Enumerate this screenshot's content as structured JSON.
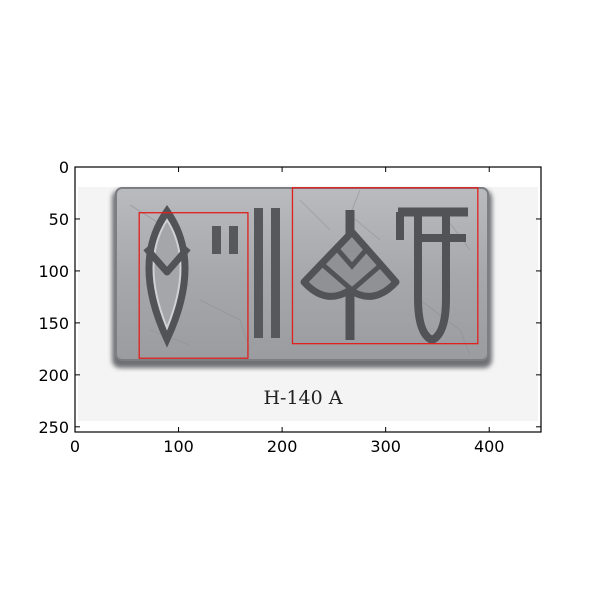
{
  "plot": {
    "xlim": [
      0,
      450
    ],
    "ylim": [
      255,
      0
    ],
    "x_ticks": [
      "0",
      "100",
      "200",
      "300",
      "400"
    ],
    "y_ticks": [
      "0",
      "50",
      "100",
      "150",
      "200",
      "250"
    ],
    "y_axis_inverted": true,
    "grid": false
  },
  "image": {
    "caption": "H-140 A",
    "content": "seal-impression-with-incised-script-signs"
  },
  "boxes": [
    {
      "name": "box-left",
      "x0": 62,
      "y0": 44,
      "x1": 167,
      "y1": 184
    },
    {
      "name": "box-right",
      "x0": 210,
      "y0": 20,
      "x1": 389,
      "y1": 170
    }
  ],
  "colors": {
    "box_stroke": "#e0201c",
    "seal_face": "#a9abaf",
    "seal_shadow": "#6a6c70",
    "background": "#ffffff"
  }
}
